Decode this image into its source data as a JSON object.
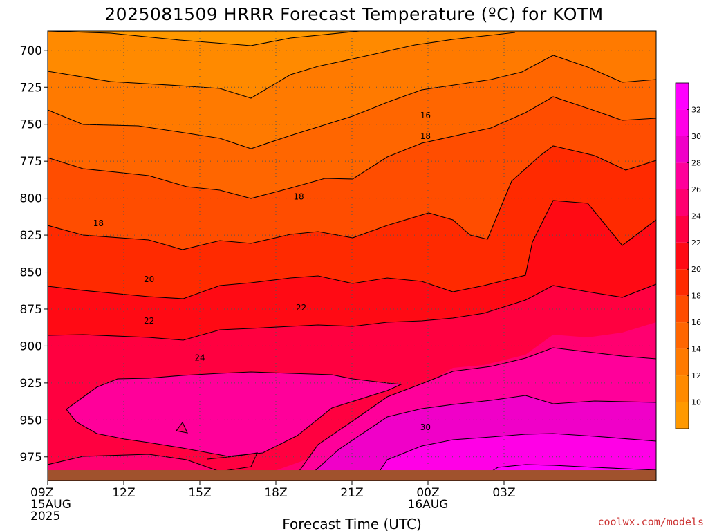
{
  "chart_data": {
    "type": "heatmap",
    "title": "2025081509 HRRR Forecast Temperature (ºC) for KOTM",
    "xlabel": "Forecast Time (UTC)",
    "ylabel": "",
    "credit": "coolwx.com/models",
    "x_hours": [
      0,
      24
    ],
    "x_ticks": [
      {
        "hour": 0,
        "lines": [
          "09Z",
          "15AUG",
          "2025"
        ]
      },
      {
        "hour": 3,
        "lines": [
          "12Z"
        ]
      },
      {
        "hour": 6,
        "lines": [
          "15Z"
        ]
      },
      {
        "hour": 9,
        "lines": [
          "18Z"
        ]
      },
      {
        "hour": 12,
        "lines": [
          "21Z"
        ]
      },
      {
        "hour": 15,
        "lines": [
          "00Z",
          "16AUG"
        ]
      },
      {
        "hour": 18,
        "lines": [
          "03Z"
        ]
      }
    ],
    "y_range_hpa": [
      687,
      991
    ],
    "y_ticks": [
      700,
      725,
      750,
      775,
      800,
      825,
      850,
      875,
      900,
      925,
      950,
      975
    ],
    "surface_pressure_hpa": 984,
    "colorbar": {
      "levels": [
        8,
        10,
        12,
        14,
        16,
        18,
        20,
        22,
        24,
        26,
        28,
        30,
        32,
        34
      ],
      "labels": [
        10,
        12,
        14,
        16,
        18,
        20,
        22,
        24,
        26,
        28,
        30,
        32
      ],
      "colors": [
        "#ff9900",
        "#ff8a00",
        "#ff7a00",
        "#ff6600",
        "#ff4d00",
        "#ff2a00",
        "#ff0a14",
        "#ff0040",
        "#ff0070",
        "#ff009a",
        "#f000c8",
        "#ff00e6",
        "#ff00ff"
      ]
    },
    "contour_labels": [
      {
        "value": "16",
        "hour": 14.9,
        "hpa": 744
      },
      {
        "value": "18",
        "hour": 14.9,
        "hpa": 758
      },
      {
        "value": "18",
        "hour": 9.9,
        "hpa": 799
      },
      {
        "value": "18",
        "hour": 2.0,
        "hpa": 817
      },
      {
        "value": "20",
        "hour": 4.0,
        "hpa": 855
      },
      {
        "value": "22",
        "hour": 10.0,
        "hpa": 874
      },
      {
        "value": "22",
        "hour": 4.0,
        "hpa": 883
      },
      {
        "value": "24",
        "hour": 6.0,
        "hpa": 908
      },
      {
        "value": "30",
        "hour": 14.9,
        "hpa": 955
      }
    ]
  }
}
